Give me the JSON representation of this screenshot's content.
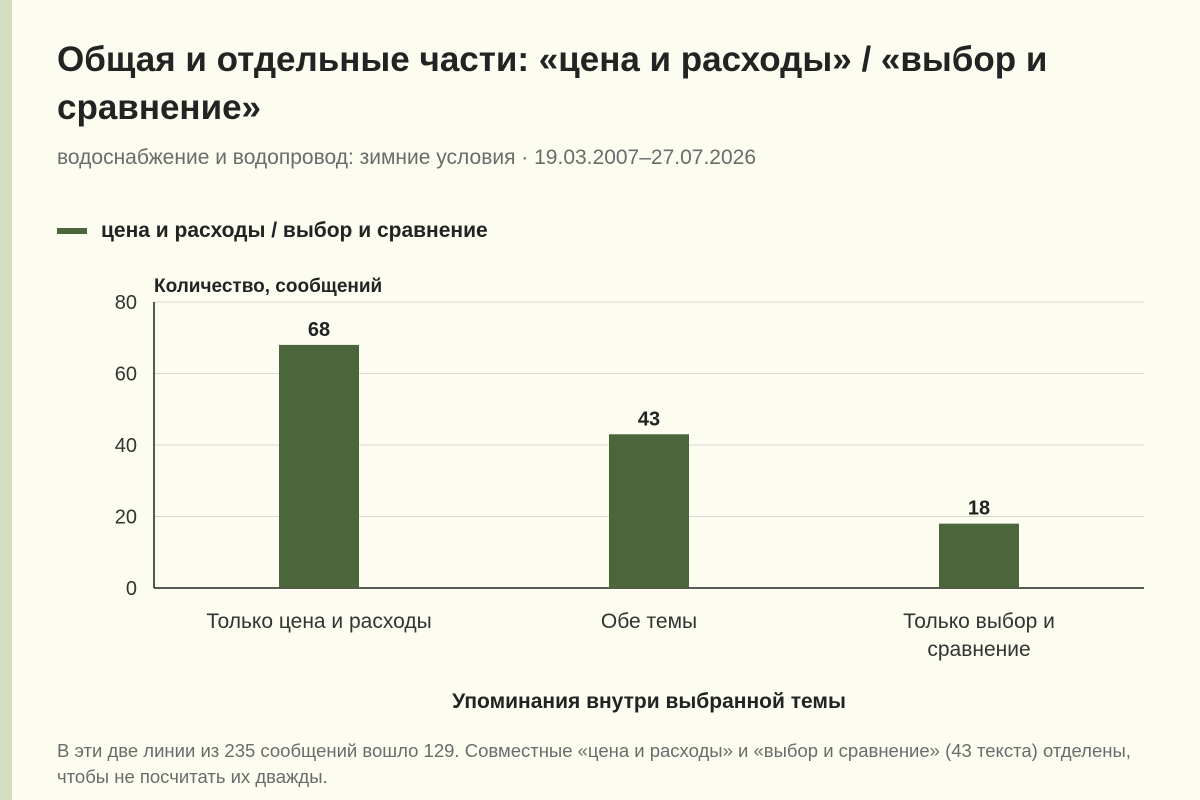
{
  "title": "Общая и отдельные части: «цена и расходы» / «выбор и сравнение»",
  "subtitle": "водоснабжение и водопровод: зимние условия · 19.03.2007–27.07.2026",
  "legend": {
    "label": "цена и расходы / выбор и сравнение"
  },
  "note": "В эти две линии из 235 сообщений вошло 129. Совместные «цена и расходы» и «выбор и сравнение» (43 текста) отделены, чтобы не посчитать их дважды.",
  "colors": {
    "bar": "#4a663a",
    "accent": "#d4ddbe",
    "background": "#fdfcf1"
  },
  "chart_data": {
    "type": "bar",
    "ylabel": "Количество, сообщений",
    "xlabel": "Упоминания внутри выбранной темы",
    "categories": [
      [
        "Только цена и расходы"
      ],
      [
        "Обе темы"
      ],
      [
        "Только выбор и",
        "сравнение"
      ]
    ],
    "series": [
      {
        "name": "цена и расходы / выбор и сравнение",
        "values": [
          68,
          43,
          18
        ]
      }
    ],
    "ylim": [
      0,
      80
    ],
    "yticks": [
      0,
      20,
      40,
      60,
      80
    ],
    "grid": true,
    "legend_position": "top-left"
  }
}
